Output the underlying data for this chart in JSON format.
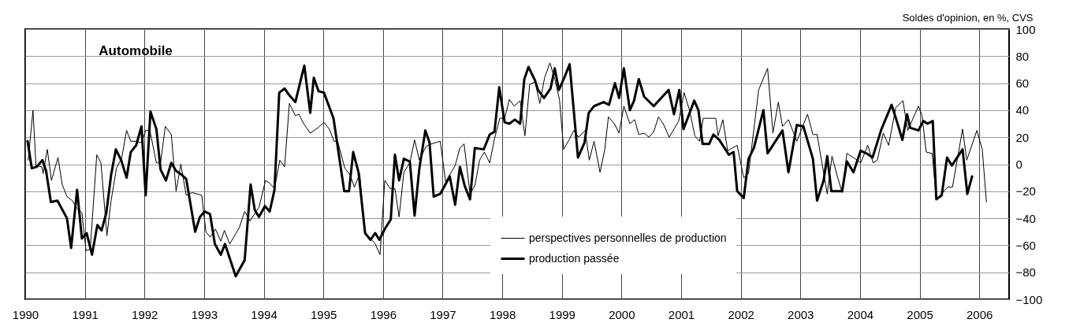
{
  "chart_data": {
    "type": "line",
    "title": "Automobile",
    "ylabel": "Soldes d'opinion, en %, CVS",
    "xlim": [
      1990,
      2006.5
    ],
    "xticks": [
      1990,
      1991,
      1992,
      1993,
      1994,
      1995,
      1996,
      1997,
      1998,
      1999,
      2000,
      2001,
      2002,
      2003,
      2004,
      2005,
      2006
    ],
    "ylim": [
      -100,
      100
    ],
    "yticks": [
      -100,
      -80,
      -60,
      -40,
      -20,
      0,
      20,
      40,
      60,
      80,
      100
    ],
    "grid": true,
    "legend": "bottom",
    "line_style": "solid",
    "series": [
      {
        "name": "perspectives personnelles de production",
        "color": "#000000",
        "x": [
          1990.05,
          1990.13,
          1990.18,
          1990.28,
          1990.3,
          1990.37,
          1990.44,
          1990.55,
          1990.62,
          1990.7,
          1990.79,
          1990.86,
          1990.95,
          1991.02,
          1991.09,
          1991.2,
          1991.27,
          1991.37,
          1991.44,
          1991.53,
          1991.62,
          1991.7,
          1991.77,
          1991.86,
          1991.95,
          1992.02,
          1992.09,
          1992.2,
          1992.27,
          1992.35,
          1992.45,
          1992.53,
          1992.61,
          1992.7,
          1992.8,
          1992.96,
          1993.03,
          1993.1,
          1993.19,
          1993.28,
          1993.34,
          1993.43,
          1993.59,
          1993.68,
          1993.77,
          1993.92,
          1994.03,
          1994.1,
          1994.18,
          1994.27,
          1994.35,
          1994.43,
          1994.53,
          1994.59,
          1994.67,
          1994.78,
          1994.91,
          1995.01,
          1995.1,
          1995.18,
          1995.24,
          1995.36,
          1995.45,
          1995.52,
          1995.61,
          1995.69,
          1995.79,
          1995.87,
          1995.95,
          1996.03,
          1996.12,
          1996.2,
          1996.27,
          1996.35,
          1996.45,
          1996.53,
          1996.61,
          1996.72,
          1996.81,
          1996.96,
          1997.05,
          1997.21,
          1997.29,
          1997.36,
          1997.46,
          1997.54,
          1997.62,
          1997.7,
          1997.79,
          1997.87,
          1997.96,
          1998.04,
          1998.12,
          1998.2,
          1998.3,
          1998.38,
          1998.46,
          1998.55,
          1998.63,
          1998.71,
          1998.8,
          1998.88,
          1998.96,
          1999.03,
          1999.12,
          1999.2,
          1999.28,
          1999.39,
          1999.46,
          1999.54,
          1999.64,
          1999.72,
          1999.78,
          1999.88,
          1999.96,
          2000.04,
          2000.14,
          2000.22,
          2000.29,
          2000.38,
          2000.46,
          2000.54,
          2000.62,
          2000.7,
          2000.8,
          2000.96,
          2001.05,
          2001.14,
          2001.23,
          2001.31,
          2001.37,
          2001.47,
          2001.58,
          2001.62,
          2001.7,
          2001.78,
          2001.94,
          2002.05,
          2002.13,
          2002.3,
          2002.45,
          2002.54,
          2002.63,
          2002.7,
          2002.8,
          2002.94,
          2003.12,
          2003.21,
          2003.28,
          2003.45,
          2003.53,
          2003.62,
          2003.7,
          2003.78,
          2003.92,
          2004.01,
          2004.13,
          2004.22,
          2004.29,
          2004.39,
          2004.48,
          2004.6,
          2004.72,
          2004.8,
          2004.98,
          2005.04,
          2005.11,
          2005.21,
          2005.28,
          2005.47,
          2005.55,
          2005.72,
          2005.79,
          2005.96,
          2006.05,
          2006.12
        ],
        "values": [
          3,
          40,
          -1,
          -2,
          -7,
          11,
          -12,
          5,
          -15,
          -24,
          -27,
          -32,
          -36,
          -64,
          -63,
          7,
          1,
          -53,
          -27,
          -3,
          5,
          25,
          17,
          17,
          16,
          25,
          25,
          1,
          1,
          28,
          22,
          -20,
          0,
          -23,
          -21,
          -23,
          -50,
          -54,
          -48,
          -57,
          -49,
          -59,
          -47,
          -35,
          -42,
          -32,
          -12,
          -14,
          -18,
          3,
          -2,
          45,
          36,
          37,
          30,
          23,
          27,
          31,
          26,
          17,
          17,
          -3,
          -8,
          -17,
          -7,
          -50,
          -55,
          -59,
          -67,
          -12,
          -18,
          -18,
          -39,
          -6,
          1,
          18,
          3,
          13,
          15,
          17,
          -13,
          -1,
          12,
          15,
          -22,
          -16,
          3,
          9,
          1,
          19,
          34,
          34,
          48,
          43,
          47,
          21,
          59,
          61,
          45,
          64,
          75,
          63,
          48,
          11,
          18,
          25,
          20,
          25,
          3,
          17,
          -6,
          11,
          35,
          30,
          23,
          43,
          30,
          33,
          22,
          23,
          20,
          24,
          35,
          30,
          20,
          32,
          53,
          40,
          21,
          17,
          34,
          34,
          34,
          21,
          33,
          10,
          14,
          -10,
          -7,
          55,
          71,
          23,
          46,
          28,
          33,
          17,
          37,
          22,
          22,
          -22,
          6,
          -9,
          -21,
          8,
          4,
          1,
          14,
          1,
          3,
          23,
          14,
          42,
          47,
          25,
          43,
          36,
          9,
          8,
          -26,
          -17,
          -17,
          26,
          3,
          25,
          11,
          -28
        ]
      },
      {
        "name": "production passée",
        "color": "#000000",
        "x": [
          1990.04,
          1990.11,
          1990.19,
          1990.29,
          1990.35,
          1990.43,
          1990.54,
          1990.7,
          1990.77,
          1990.87,
          1990.95,
          1991.03,
          1991.12,
          1991.21,
          1991.28,
          1991.36,
          1991.44,
          1991.52,
          1991.61,
          1991.7,
          1991.77,
          1991.86,
          1991.95,
          1992.02,
          1992.1,
          1992.2,
          1992.27,
          1992.36,
          1992.45,
          1992.53,
          1992.63,
          1992.7,
          1992.85,
          1992.93,
          1993.01,
          1993.1,
          1993.18,
          1993.28,
          1993.35,
          1993.53,
          1993.68,
          1993.78,
          1993.85,
          1993.92,
          1994.02,
          1994.1,
          1994.18,
          1994.26,
          1994.35,
          1994.43,
          1994.53,
          1994.68,
          1994.78,
          1994.84,
          1994.92,
          1995.01,
          1995.17,
          1995.35,
          1995.43,
          1995.5,
          1995.59,
          1995.7,
          1995.79,
          1995.87,
          1995.94,
          1996.03,
          1996.13,
          1996.2,
          1996.27,
          1996.35,
          1996.45,
          1996.53,
          1996.61,
          1996.71,
          1996.78,
          1996.85,
          1996.96,
          1997.12,
          1997.21,
          1997.29,
          1997.37,
          1997.46,
          1997.54,
          1997.69,
          1997.79,
          1997.87,
          1997.95,
          1998.04,
          1998.12,
          1998.21,
          1998.3,
          1998.37,
          1998.44,
          1998.55,
          1998.6,
          1998.7,
          1998.81,
          1998.88,
          1998.95,
          1999.04,
          1999.13,
          1999.27,
          1999.38,
          1999.45,
          1999.54,
          1999.7,
          1999.79,
          1999.89,
          1999.96,
          2000.04,
          2000.14,
          2000.21,
          2000.29,
          2000.38,
          2000.54,
          2000.79,
          2000.88,
          2000.97,
          2001.04,
          2001.22,
          2001.29,
          2001.36,
          2001.47,
          2001.54,
          2001.64,
          2001.8,
          2001.88,
          2001.94,
          2002.05,
          2002.13,
          2002.22,
          2002.3,
          2002.38,
          2002.45,
          2002.7,
          2002.8,
          2002.94,
          2003.05,
          2003.21,
          2003.28,
          2003.39,
          2003.45,
          2003.52,
          2003.7,
          2003.78,
          2003.89,
          2004.01,
          2004.11,
          2004.21,
          2004.36,
          2004.53,
          2004.63,
          2004.71,
          2004.79,
          2004.84,
          2004.98,
          2005.06,
          2005.13,
          2005.22,
          2005.28,
          2005.37,
          2005.46,
          2005.54,
          2005.63,
          2005.72,
          2005.8,
          2005.88
        ],
        "values": [
          17,
          -3,
          -2,
          3,
          -5,
          -28,
          -27,
          -40,
          -62,
          -19,
          -55,
          -51,
          -67,
          -45,
          -49,
          -36,
          -8,
          11,
          3,
          -10,
          9,
          14,
          28,
          -23,
          39,
          26,
          -4,
          -12,
          1,
          -5,
          -8,
          -11,
          -50,
          -39,
          -35,
          -37,
          -59,
          -67,
          -59,
          -83,
          -71,
          -15,
          -34,
          -39,
          -31,
          -35,
          -19,
          53,
          56,
          51,
          46,
          73,
          38,
          64,
          54,
          53,
          34,
          -20,
          -20,
          9,
          -6,
          -51,
          -56,
          -51,
          -56,
          -48,
          -41,
          7,
          -12,
          4,
          2,
          -38,
          -3,
          25,
          16,
          -24,
          -22,
          -9,
          -30,
          -2,
          -16,
          -26,
          12,
          11,
          22,
          24,
          57,
          31,
          30,
          33,
          30,
          63,
          72,
          62,
          55,
          49,
          56,
          71,
          55,
          64,
          74,
          5,
          16,
          38,
          43,
          46,
          44,
          60,
          49,
          71,
          40,
          47,
          63,
          50,
          43,
          55,
          37,
          55,
          26,
          47,
          40,
          15,
          15,
          22,
          18,
          7,
          9,
          -20,
          -25,
          4,
          12,
          26,
          40,
          8,
          25,
          -6,
          29,
          28,
          4,
          -27,
          -12,
          6,
          -20,
          -20,
          2,
          -6,
          10,
          8,
          5,
          26,
          44,
          30,
          18,
          37,
          27,
          25,
          32,
          30,
          32,
          -26,
          -23,
          5,
          -1,
          5,
          11,
          -22,
          -9
        ]
      }
    ]
  }
}
